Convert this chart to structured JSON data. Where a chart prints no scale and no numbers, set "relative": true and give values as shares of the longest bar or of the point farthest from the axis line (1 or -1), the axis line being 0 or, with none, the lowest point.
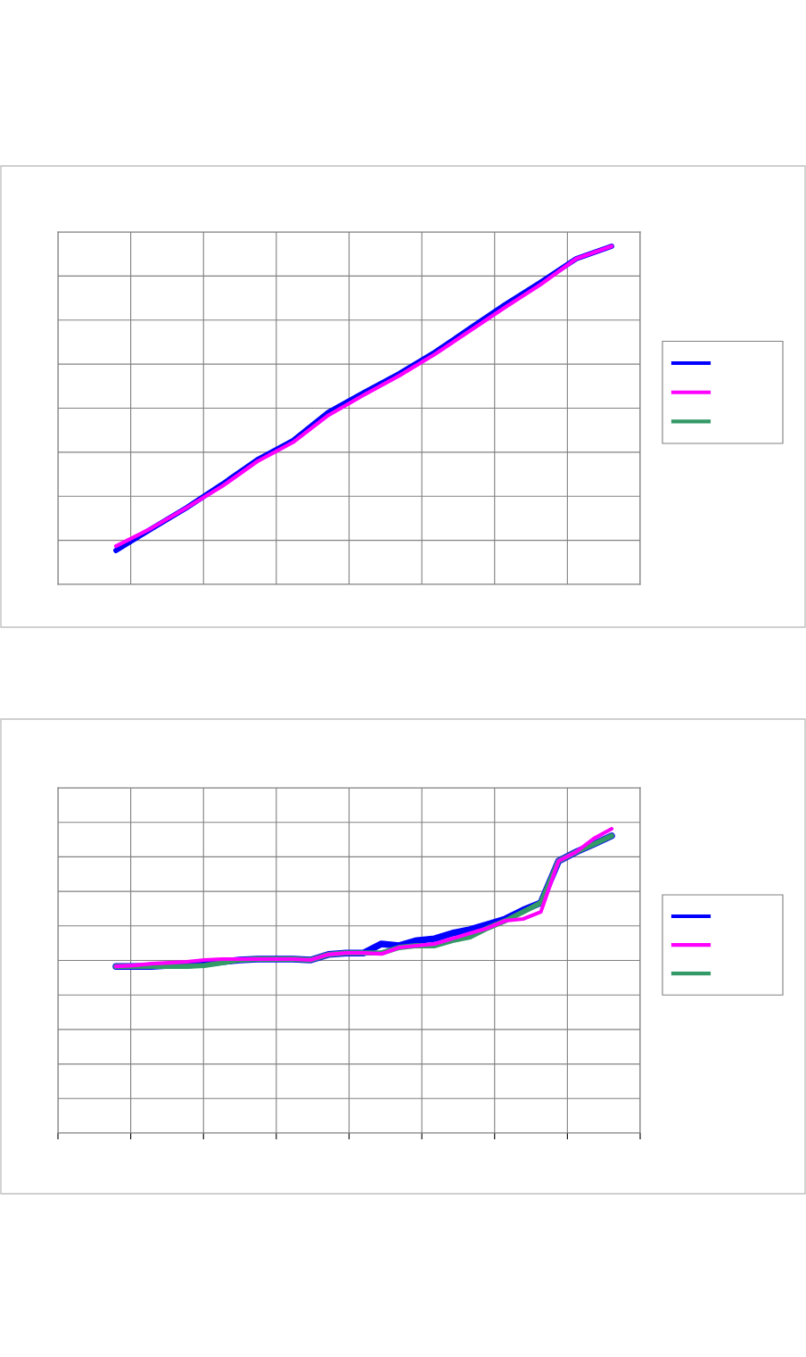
{
  "chart_data": [
    {
      "type": "line",
      "relative": true,
      "grid": true,
      "marker": "none",
      "line_style": "solid",
      "categories": [
        null,
        null,
        null,
        null,
        null,
        null,
        null,
        null,
        null,
        null,
        null,
        null,
        null,
        null,
        null
      ],
      "series": [
        {
          "color": "#0000ff",
          "values": [
            0.1,
            0.164,
            0.227,
            0.296,
            0.369,
            0.425,
            0.509,
            0.567,
            0.623,
            0.686,
            0.757,
            0.828,
            0.894,
            0.963,
            1.0
          ]
        },
        {
          "color": "#ff00ff",
          "values": [
            0.113,
            0.166,
            0.227,
            0.29,
            0.364,
            0.42,
            0.5,
            0.56,
            0.617,
            0.68,
            0.75,
            0.82,
            0.887,
            0.963,
            1.0
          ]
        }
      ]
    },
    {
      "type": "line",
      "relative": true,
      "grid": true,
      "marker": "none",
      "line_style": "solid",
      "categories": [
        null,
        null,
        null,
        null,
        null,
        null,
        null,
        null,
        null,
        null,
        null,
        null,
        null,
        null,
        null,
        null,
        null,
        null,
        null,
        null,
        null,
        null,
        null,
        null,
        null,
        null,
        null,
        null,
        null
      ],
      "series": [
        {
          "color": "#0000ff",
          "values": [
            0.548,
            0.548,
            0.548,
            0.551,
            0.551,
            0.557,
            0.563,
            0.569,
            0.572,
            0.572,
            0.572,
            0.569,
            0.587,
            0.592,
            0.592,
            0.622,
            0.616,
            0.633,
            0.639,
            0.657,
            0.669,
            0.686,
            0.704,
            0.733,
            0.757,
            0.894,
            0.924,
            0.95,
            0.977
          ]
        },
        {
          "color": "#339966",
          "values": [
            0.548,
            0.548,
            0.548,
            0.548,
            0.548,
            0.551,
            0.56,
            0.569,
            0.572,
            0.572,
            0.572,
            0.569,
            0.587,
            0.592,
            0.592,
            0.592,
            0.61,
            0.616,
            0.616,
            0.633,
            0.645,
            0.674,
            0.698,
            0.727,
            0.757,
            0.894,
            0.924,
            0.95,
            0.977
          ]
        },
        {
          "color": "#ff00ff",
          "values": [
            0.548,
            0.551,
            0.557,
            0.56,
            0.563,
            0.569,
            0.572,
            0.572,
            0.572,
            0.572,
            0.572,
            0.569,
            0.587,
            0.592,
            0.592,
            0.589,
            0.61,
            0.616,
            0.622,
            0.639,
            0.657,
            0.674,
            0.698,
            0.704,
            0.727,
            0.894,
            0.924,
            0.968,
            1.0
          ]
        }
      ]
    }
  ]
}
